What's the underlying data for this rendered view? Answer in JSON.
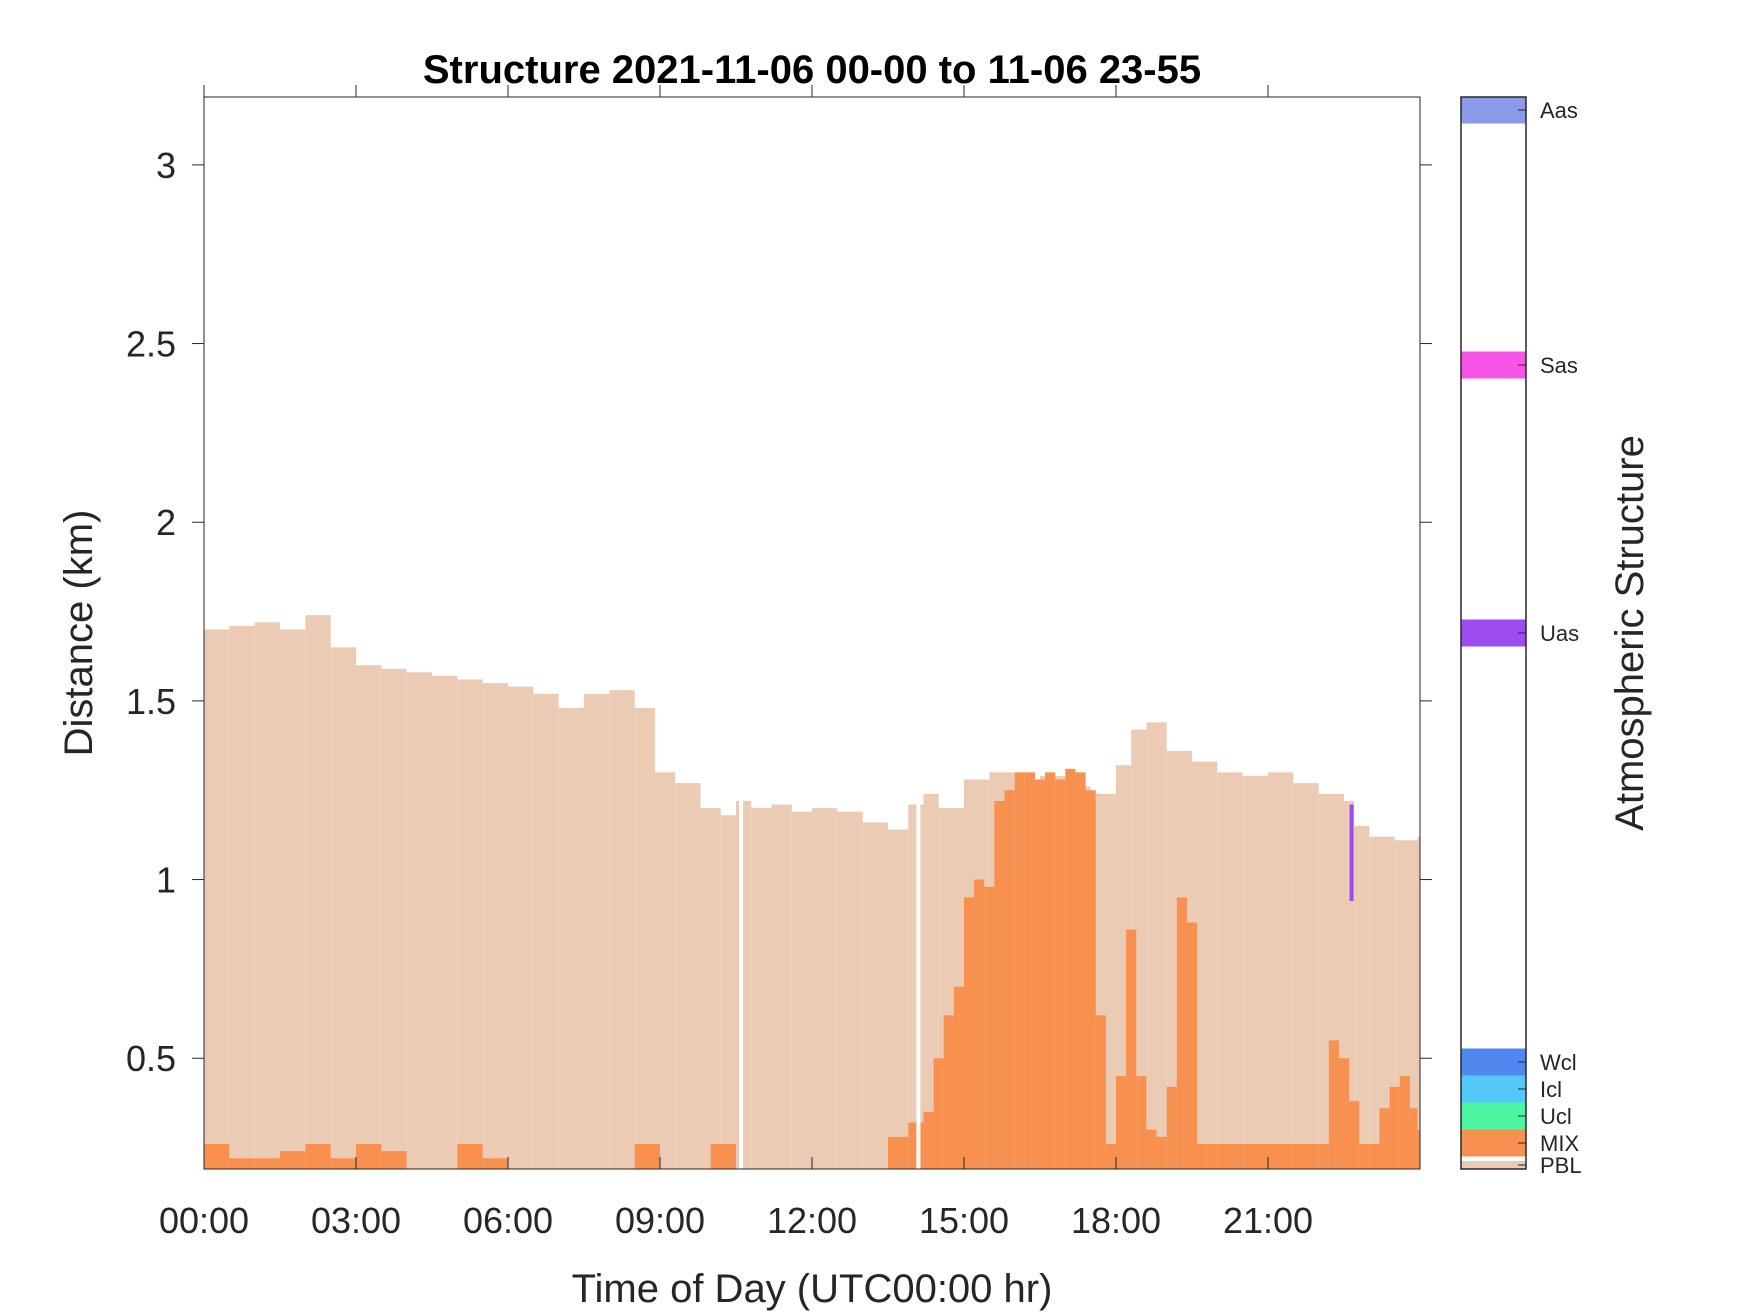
{
  "chart_data": {
    "type": "area",
    "title": "Structure 2021-11-06 00-00 to 11-06 23-55",
    "xlabel": "Time of Day (UTC00:00 hr)",
    "ylabel": "Distance (km)",
    "xlim": [
      0,
      24
    ],
    "ylim": [
      0.19,
      3.19
    ],
    "x_ticks": [
      {
        "value": 0,
        "label": "00:00"
      },
      {
        "value": 3,
        "label": "03:00"
      },
      {
        "value": 6,
        "label": "06:00"
      },
      {
        "value": 9,
        "label": "09:00"
      },
      {
        "value": 12,
        "label": "12:00"
      },
      {
        "value": 15,
        "label": "15:00"
      },
      {
        "value": 18,
        "label": "18:00"
      },
      {
        "value": 21,
        "label": "21:00"
      }
    ],
    "y_ticks": [
      {
        "value": 0.5,
        "label": "0.5"
      },
      {
        "value": 1,
        "label": "1"
      },
      {
        "value": 1.5,
        "label": "1.5"
      },
      {
        "value": 2,
        "label": "2"
      },
      {
        "value": 2.5,
        "label": "2.5"
      },
      {
        "value": 3,
        "label": "3"
      }
    ],
    "colorbar": {
      "title": "Atmospheric Structure",
      "categories": [
        {
          "label": "PBL",
          "color": "#ECCBB5"
        },
        {
          "label": "MIX",
          "color": "#F89050"
        },
        {
          "label": "Ucl",
          "color": "#4CF5A0"
        },
        {
          "label": "Icl",
          "color": "#54C8F8"
        },
        {
          "label": "Wcl",
          "color": "#5088F0"
        },
        {
          "label": "Uas",
          "color": "#9E4CF0"
        },
        {
          "label": "Sas",
          "color": "#F855E8"
        },
        {
          "label": "Aas",
          "color": "#8C9AEA"
        }
      ]
    },
    "series": [
      {
        "name": "PBL",
        "color": "#ECCBB5",
        "x": [
          0,
          0.5,
          1,
          1.5,
          2,
          2.5,
          3,
          3.5,
          4,
          4.5,
          5,
          5.5,
          6,
          6.5,
          7,
          7.5,
          8,
          8.5,
          8.9,
          9.3,
          9.8,
          10.2,
          10.5,
          10.8,
          11.2,
          11.6,
          12,
          12.5,
          13,
          13.5,
          13.9,
          14.2,
          14.5,
          15,
          15.5,
          16,
          16.5,
          17,
          17.5,
          18,
          18.3,
          18.6,
          19,
          19.5,
          20,
          20.5,
          21,
          21.5,
          22,
          22.5,
          22.7,
          23,
          23.5,
          23.95
        ],
        "values": [
          1.7,
          1.71,
          1.72,
          1.7,
          1.74,
          1.65,
          1.6,
          1.59,
          1.58,
          1.57,
          1.56,
          1.55,
          1.54,
          1.52,
          1.48,
          1.52,
          1.53,
          1.48,
          1.3,
          1.27,
          1.2,
          1.18,
          1.22,
          1.2,
          1.21,
          1.19,
          1.2,
          1.19,
          1.16,
          1.14,
          1.21,
          1.24,
          1.2,
          1.28,
          1.3,
          1.27,
          1.29,
          1.26,
          1.24,
          1.32,
          1.42,
          1.44,
          1.36,
          1.33,
          1.3,
          1.29,
          1.3,
          1.27,
          1.24,
          1.22,
          1.15,
          1.12,
          1.11,
          1.12
        ]
      },
      {
        "name": "MIX",
        "color": "#F89050",
        "x": [
          0,
          0.5,
          1,
          1.5,
          2,
          2.5,
          3,
          3.5,
          4,
          4.5,
          5,
          5.5,
          6,
          6.5,
          7,
          7.5,
          8,
          8.5,
          9,
          9.5,
          10,
          10.5,
          11,
          11.5,
          12,
          12.5,
          13,
          13.5,
          13.9,
          14.2,
          14.4,
          14.6,
          14.8,
          15,
          15.2,
          15.4,
          15.6,
          15.8,
          16,
          16.2,
          16.4,
          16.6,
          16.8,
          17,
          17.2,
          17.4,
          17.6,
          17.8,
          18,
          18.2,
          18.4,
          18.6,
          18.8,
          19,
          19.2,
          19.4,
          19.6,
          19.8,
          20,
          20.5,
          21,
          21.5,
          22,
          22.2,
          22.4,
          22.6,
          22.8,
          23,
          23.2,
          23.4,
          23.6,
          23.8,
          23.95
        ],
        "values": [
          0.26,
          0.22,
          0.22,
          0.24,
          0.26,
          0.22,
          0.26,
          0.24,
          0.19,
          0.19,
          0.26,
          0.22,
          0.19,
          0.19,
          0.19,
          0.19,
          0.19,
          0.26,
          0.19,
          0.19,
          0.26,
          0.19,
          0.19,
          0.19,
          0.19,
          0.19,
          0.19,
          0.28,
          0.32,
          0.35,
          0.5,
          0.62,
          0.7,
          0.95,
          1.0,
          0.98,
          1.22,
          1.25,
          1.3,
          1.3,
          1.28,
          1.3,
          1.28,
          1.31,
          1.3,
          1.25,
          0.62,
          0.26,
          0.45,
          0.86,
          0.45,
          0.3,
          0.28,
          0.42,
          0.95,
          0.88,
          0.26,
          0.26,
          0.26,
          0.26,
          0.26,
          0.26,
          0.26,
          0.55,
          0.5,
          0.38,
          0.26,
          0.26,
          0.36,
          0.42,
          0.45,
          0.36,
          0.3
        ]
      },
      {
        "name": "Uas",
        "color": "#9E4CF0",
        "segments": [
          {
            "x": 22.65,
            "y_bottom": 0.94,
            "y_top": 1.21
          }
        ]
      }
    ],
    "gaps": [
      10.6,
      14.1
    ],
    "grid": false
  }
}
